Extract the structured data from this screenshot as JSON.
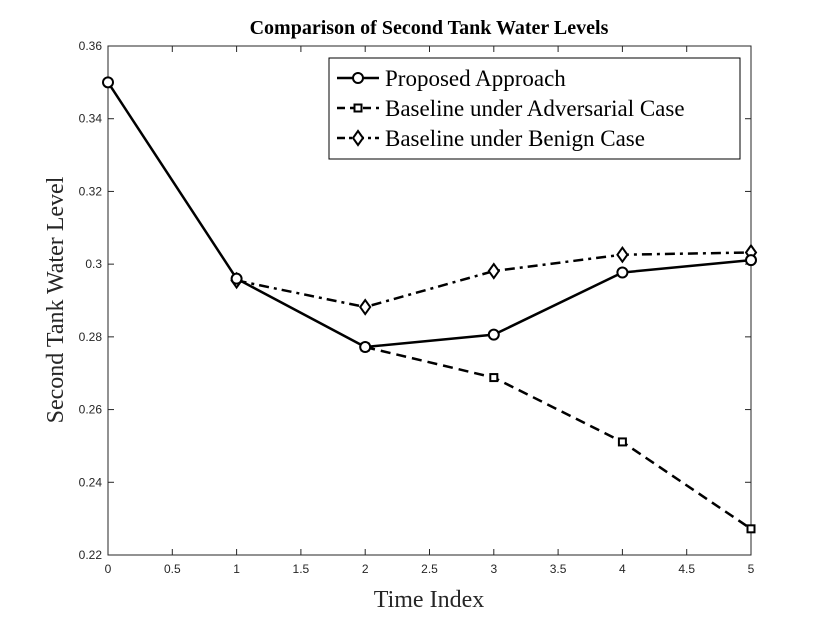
{
  "chart_data": {
    "type": "line",
    "title": "Comparison of Second Tank Water Levels",
    "xlabel": "Time Index",
    "ylabel": "Second Tank Water Level",
    "xlim": [
      0,
      5
    ],
    "ylim": [
      0.22,
      0.36
    ],
    "xticks": [
      0,
      0.5,
      1,
      1.5,
      2,
      2.5,
      3,
      3.5,
      4,
      4.5,
      5
    ],
    "xtick_labels": [
      "0",
      "0.5",
      "1",
      "1.5",
      "2",
      "2.5",
      "3",
      "3.5",
      "4",
      "4.5",
      "5"
    ],
    "yticks": [
      0.22,
      0.24,
      0.26,
      0.28,
      0.3,
      0.32,
      0.34,
      0.36
    ],
    "ytick_labels": [
      "0.22",
      "0.24",
      "0.26",
      "0.28",
      "0.3",
      "0.32",
      "0.34",
      "0.36"
    ],
    "grid": false,
    "legend_position": "top-right",
    "x": [
      0,
      1,
      2,
      3,
      4,
      5
    ],
    "series": [
      {
        "name": "Proposed Approach",
        "marker": "circle",
        "linestyle": "solid",
        "x": [
          0,
          1,
          2,
          3,
          4,
          5
        ],
        "values": [
          0.35,
          0.296,
          0.2772,
          0.2806,
          0.2977,
          0.3011
        ]
      },
      {
        "name": "Baseline under Adversarial Case",
        "marker": "square",
        "linestyle": "dashed",
        "x": [
          2,
          3,
          4,
          5
        ],
        "values": [
          0.2772,
          0.2688,
          0.2511,
          0.2272
        ]
      },
      {
        "name": "Baseline under Benign Case",
        "marker": "diamond",
        "linestyle": "dashdot",
        "x": [
          1,
          2,
          3,
          4,
          5
        ],
        "values": [
          0.2955,
          0.2882,
          0.2981,
          0.3026,
          0.3032
        ]
      }
    ],
    "colors": {
      "line": "#000000",
      "axis": "#262626"
    }
  }
}
